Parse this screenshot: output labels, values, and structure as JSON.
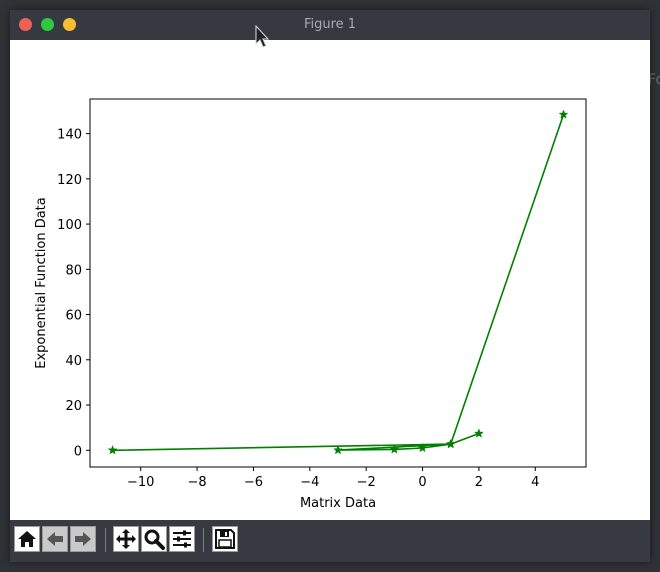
{
  "window": {
    "title": "Figure 1"
  },
  "background": {
    "partial_text": "Fo"
  },
  "toolbar": {
    "buttons": [
      {
        "name": "home-button",
        "icon": "home-icon"
      },
      {
        "name": "back-button",
        "icon": "back-arrow-icon"
      },
      {
        "name": "forward-button",
        "icon": "forward-arrow-icon"
      },
      {
        "name": "pan-button",
        "icon": "move-icon"
      },
      {
        "name": "zoom-button",
        "icon": "magnifier-icon"
      },
      {
        "name": "configure-subplots-button",
        "icon": "sliders-icon"
      },
      {
        "name": "save-button",
        "icon": "floppy-disk-icon"
      }
    ]
  },
  "chart_data": {
    "type": "line",
    "title": "",
    "xlabel": "Matrix Data",
    "ylabel": "Exponential Function Data",
    "xlim": [
      -11.8,
      5.8
    ],
    "ylim": [
      -7.4,
      155.3
    ],
    "xticks": [
      -10,
      -8,
      -6,
      -4,
      -2,
      0,
      2,
      4
    ],
    "xtick_labels": [
      "−10",
      "−8",
      "−6",
      "−4",
      "−2",
      "0",
      "2",
      "4"
    ],
    "yticks": [
      0,
      20,
      40,
      60,
      80,
      100,
      120,
      140
    ],
    "ytick_labels": [
      "0",
      "20",
      "40",
      "60",
      "80",
      "100",
      "120",
      "140"
    ],
    "grid": false,
    "series": [
      {
        "color": "#008000",
        "marker": "star",
        "x": [
          -11,
          1,
          -3,
          -1,
          0,
          1,
          5,
          1,
          2
        ],
        "y": [
          0.0,
          2.72,
          0.05,
          0.37,
          1.0,
          2.72,
          148.41,
          2.72,
          7.39
        ]
      }
    ]
  }
}
